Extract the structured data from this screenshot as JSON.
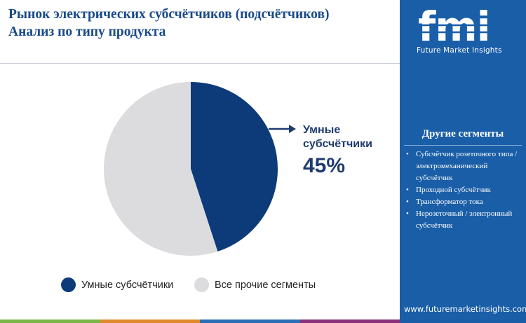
{
  "header": {
    "title_line1": "Рынок электрических субсчётчиков (подсчётчиков)",
    "title_line2": "Анализ по типу продукта"
  },
  "colors": {
    "primary": "#0d3b7a",
    "secondary": "#dcdcdf",
    "sidebar": "#1a5ea8",
    "title": "#1a4a8a"
  },
  "chart_data": {
    "type": "pie",
    "categories": [
      "Умные субсчётчики",
      "Все прочие сегменты"
    ],
    "values": [
      45,
      55
    ],
    "unit": "%",
    "title": "",
    "legend_position": "bottom"
  },
  "callout": {
    "label": "Умные субсчётчики",
    "value": "45%"
  },
  "legend": [
    {
      "label": "Умные субсчётчики",
      "color": "#0d3b7a"
    },
    {
      "label": "Все прочие сегменты",
      "color": "#dcdcdf"
    }
  ],
  "sidebar": {
    "logo_text": "fmi",
    "brand": "Future Market Insights",
    "segments_title": "Другие сегменты",
    "bullet": "•",
    "segments": [
      "Субсчётчик розеточного типа / электромеханический субсчётчик",
      "Проходной субсчётчик",
      "Трансформатор тока",
      "Нерозеточный / электронный субсчётчик"
    ],
    "url": "www.futuremarketinsights.com"
  },
  "footer_bar_colors": [
    "#7ab648",
    "#e0892c",
    "#2a6fb5",
    "#8a2f7a"
  ]
}
